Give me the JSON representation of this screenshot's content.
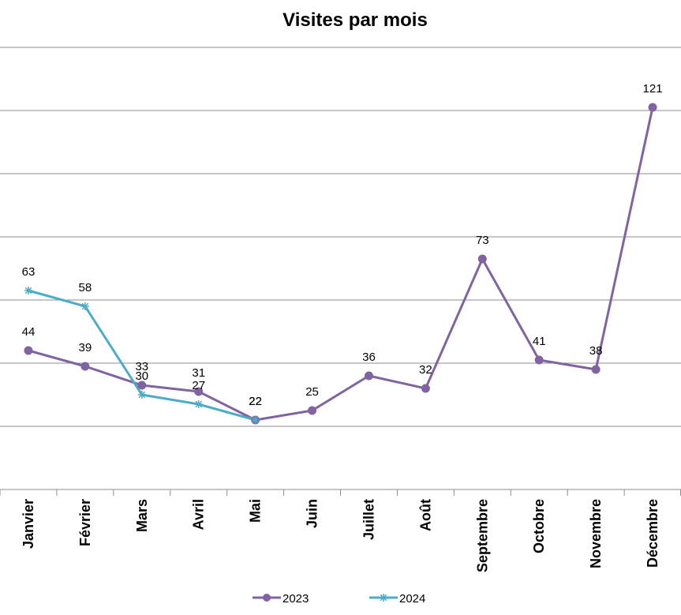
{
  "chart_data": {
    "type": "line",
    "title": "Visites par mois",
    "xlabel": "",
    "ylabel": "",
    "categories": [
      "Janvier",
      "Février",
      "Mars",
      "Avril",
      "Mai",
      "Juin",
      "Juillet",
      "Août",
      "Septembre",
      "Octobre",
      "Novembre",
      "Décembre"
    ],
    "series": [
      {
        "name": "2023",
        "color": "#8064A2",
        "marker": "circle",
        "values": [
          44,
          39,
          33,
          31,
          22,
          25,
          36,
          32,
          73,
          41,
          38,
          121
        ]
      },
      {
        "name": "2024",
        "color": "#4BACC6",
        "marker": "asterisk",
        "values": [
          63,
          58,
          30,
          27,
          22,
          null,
          null,
          null,
          null,
          null,
          null,
          null
        ]
      }
    ],
    "ylim": [
      0,
      140
    ],
    "grid": true,
    "legend": "bottom"
  }
}
